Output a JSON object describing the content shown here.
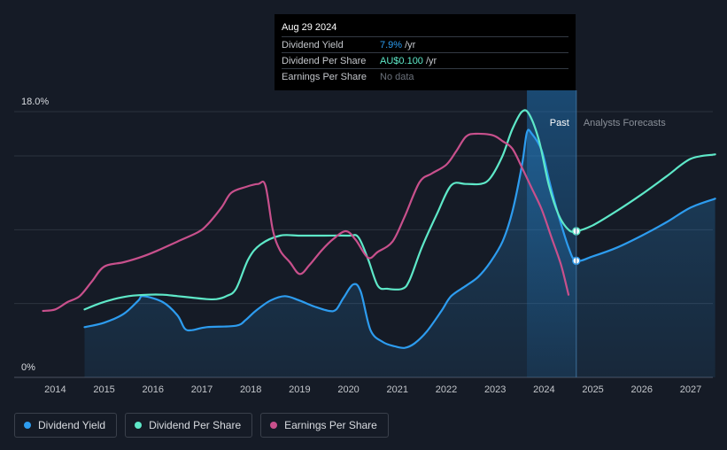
{
  "tooltip": {
    "date": "Aug 29 2024",
    "rows": [
      {
        "label": "Dividend Yield",
        "value": "7.9%",
        "unit": "/yr",
        "color": "#2d9cef"
      },
      {
        "label": "Dividend Per Share",
        "value": "AU$0.100",
        "unit": "/yr",
        "color": "#5ee8c8"
      },
      {
        "label": "Earnings Per Share",
        "value": "No data",
        "unit": "",
        "color": "#6b717b"
      }
    ]
  },
  "legend": [
    {
      "label": "Dividend Yield",
      "color": "#2d9cef"
    },
    {
      "label": "Dividend Per Share",
      "color": "#5ee8c8"
    },
    {
      "label": "Earnings Per Share",
      "color": "#c8508c"
    }
  ],
  "chart_data": {
    "type": "line",
    "y_top_label": "18.0%",
    "y_bottom_label": "0%",
    "ylim": [
      0,
      18
    ],
    "xlim": [
      2013.25,
      2027.5
    ],
    "x_ticks": [
      "2014",
      "2015",
      "2016",
      "2017",
      "2018",
      "2019",
      "2020",
      "2021",
      "2022",
      "2023",
      "2024",
      "2025",
      "2026",
      "2027"
    ],
    "past_label": "Past",
    "forecast_label": "Analysts Forecasts",
    "past_end_x": 2024.66,
    "forecast_start_x": 2023.65,
    "series": [
      {
        "name": "Dividend Yield",
        "color": "#2d9cef",
        "area": true,
        "points": [
          [
            2014.6,
            3.4
          ],
          [
            2015.0,
            3.7
          ],
          [
            2015.4,
            4.3
          ],
          [
            2015.7,
            5.2
          ],
          [
            2015.8,
            5.5
          ],
          [
            2016.2,
            5.1
          ],
          [
            2016.5,
            4.2
          ],
          [
            2016.65,
            3.3
          ],
          [
            2016.8,
            3.2
          ],
          [
            2017.1,
            3.4
          ],
          [
            2017.7,
            3.5
          ],
          [
            2017.9,
            3.9
          ],
          [
            2018.1,
            4.5
          ],
          [
            2018.4,
            5.2
          ],
          [
            2018.7,
            5.5
          ],
          [
            2019.0,
            5.2
          ],
          [
            2019.3,
            4.8
          ],
          [
            2019.6,
            4.5
          ],
          [
            2019.75,
            4.6
          ],
          [
            2019.9,
            5.4
          ],
          [
            2020.1,
            6.3
          ],
          [
            2020.25,
            5.8
          ],
          [
            2020.45,
            3.2
          ],
          [
            2020.7,
            2.4
          ],
          [
            2020.95,
            2.1
          ],
          [
            2021.15,
            2.0
          ],
          [
            2021.35,
            2.3
          ],
          [
            2021.6,
            3.1
          ],
          [
            2021.9,
            4.5
          ],
          [
            2022.1,
            5.5
          ],
          [
            2022.4,
            6.2
          ],
          [
            2022.65,
            6.8
          ],
          [
            2022.9,
            7.8
          ],
          [
            2023.15,
            9.2
          ],
          [
            2023.35,
            11.2
          ],
          [
            2023.55,
            14.4
          ],
          [
            2023.65,
            16.6
          ],
          [
            2023.75,
            16.5
          ],
          [
            2023.95,
            15.4
          ],
          [
            2024.1,
            13.4
          ],
          [
            2024.25,
            11.5
          ],
          [
            2024.5,
            8.8
          ],
          [
            2024.66,
            7.9
          ],
          [
            2025.0,
            8.2
          ],
          [
            2025.5,
            8.8
          ],
          [
            2026.0,
            9.6
          ],
          [
            2026.5,
            10.5
          ],
          [
            2027.0,
            11.5
          ],
          [
            2027.5,
            12.1
          ]
        ]
      },
      {
        "name": "Dividend Per Share",
        "color": "#5ee8c8",
        "area": false,
        "points": [
          [
            2014.6,
            4.6
          ],
          [
            2014.9,
            5.0
          ],
          [
            2015.2,
            5.3
          ],
          [
            2015.5,
            5.5
          ],
          [
            2015.9,
            5.6
          ],
          [
            2016.2,
            5.6
          ],
          [
            2016.5,
            5.5
          ],
          [
            2016.8,
            5.4
          ],
          [
            2017.1,
            5.3
          ],
          [
            2017.3,
            5.3
          ],
          [
            2017.5,
            5.5
          ],
          [
            2017.7,
            6.0
          ],
          [
            2017.95,
            8.0
          ],
          [
            2018.2,
            9.0
          ],
          [
            2018.6,
            9.6
          ],
          [
            2019.0,
            9.6
          ],
          [
            2019.5,
            9.6
          ],
          [
            2020.0,
            9.6
          ],
          [
            2020.2,
            9.5
          ],
          [
            2020.4,
            8.0
          ],
          [
            2020.6,
            6.2
          ],
          [
            2020.8,
            6.0
          ],
          [
            2021.1,
            6.0
          ],
          [
            2021.25,
            6.6
          ],
          [
            2021.5,
            8.8
          ],
          [
            2021.8,
            11.0
          ],
          [
            2022.1,
            13.0
          ],
          [
            2022.4,
            13.1
          ],
          [
            2022.7,
            13.1
          ],
          [
            2022.9,
            13.5
          ],
          [
            2023.15,
            15.0
          ],
          [
            2023.35,
            16.8
          ],
          [
            2023.55,
            18.0
          ],
          [
            2023.7,
            17.8
          ],
          [
            2023.9,
            16.0
          ],
          [
            2024.1,
            13.0
          ],
          [
            2024.3,
            11.0
          ],
          [
            2024.5,
            10.0
          ],
          [
            2024.66,
            9.9
          ],
          [
            2025.0,
            10.3
          ],
          [
            2025.5,
            11.3
          ],
          [
            2026.0,
            12.4
          ],
          [
            2026.5,
            13.6
          ],
          [
            2027.0,
            14.8
          ],
          [
            2027.5,
            15.1
          ]
        ]
      },
      {
        "name": "Earnings Per Share",
        "color": "#c8508c",
        "area": false,
        "points": [
          [
            2013.75,
            4.5
          ],
          [
            2014.0,
            4.6
          ],
          [
            2014.25,
            5.1
          ],
          [
            2014.5,
            5.5
          ],
          [
            2014.75,
            6.5
          ],
          [
            2015.0,
            7.5
          ],
          [
            2015.4,
            7.8
          ],
          [
            2015.8,
            8.2
          ],
          [
            2016.1,
            8.6
          ],
          [
            2016.5,
            9.2
          ],
          [
            2016.9,
            9.8
          ],
          [
            2017.1,
            10.3
          ],
          [
            2017.4,
            11.5
          ],
          [
            2017.6,
            12.5
          ],
          [
            2017.9,
            12.9
          ],
          [
            2018.15,
            13.1
          ],
          [
            2018.3,
            13.0
          ],
          [
            2018.45,
            10.0
          ],
          [
            2018.6,
            8.6
          ],
          [
            2018.8,
            7.8
          ],
          [
            2019.0,
            7.0
          ],
          [
            2019.2,
            7.6
          ],
          [
            2019.45,
            8.6
          ],
          [
            2019.7,
            9.4
          ],
          [
            2019.95,
            9.9
          ],
          [
            2020.15,
            9.3
          ],
          [
            2020.4,
            8.1
          ],
          [
            2020.6,
            8.5
          ],
          [
            2020.9,
            9.2
          ],
          [
            2021.15,
            10.9
          ],
          [
            2021.45,
            13.2
          ],
          [
            2021.7,
            13.8
          ],
          [
            2022.0,
            14.4
          ],
          [
            2022.2,
            15.3
          ],
          [
            2022.4,
            16.3
          ],
          [
            2022.6,
            16.5
          ],
          [
            2022.95,
            16.4
          ],
          [
            2023.15,
            16.0
          ],
          [
            2023.35,
            15.5
          ],
          [
            2023.55,
            14.2
          ],
          [
            2023.75,
            12.8
          ],
          [
            2023.95,
            11.4
          ],
          [
            2024.15,
            9.5
          ],
          [
            2024.35,
            7.6
          ],
          [
            2024.5,
            5.6
          ]
        ]
      }
    ],
    "markers": [
      {
        "series": "Dividend Yield",
        "x": 2024.66,
        "y": 7.9
      },
      {
        "series": "Dividend Per Share",
        "x": 2024.66,
        "y": 9.9
      }
    ]
  }
}
